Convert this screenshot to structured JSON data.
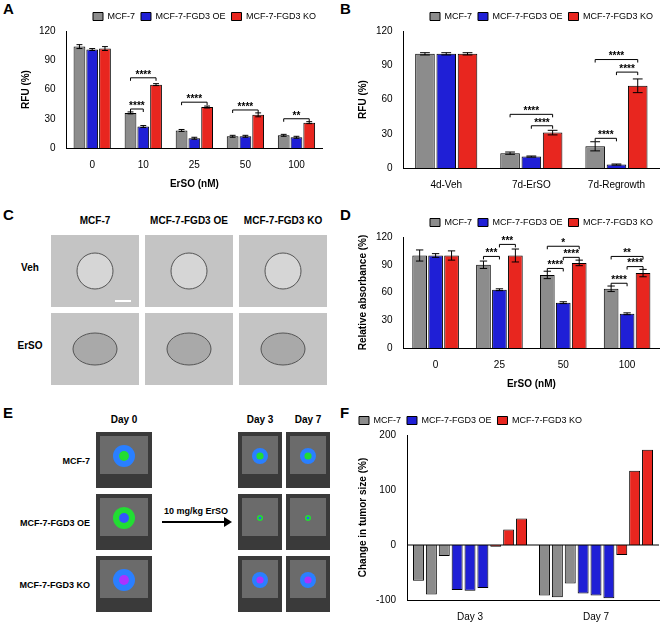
{
  "chart_data": [
    {
      "panel": "A",
      "type": "bar",
      "categories": [
        "0",
        "10",
        "25",
        "50",
        "100"
      ],
      "x_label": "ErSO (nM)",
      "y_label": "RFU (%)",
      "ylim": [
        0,
        120
      ],
      "yticks": [
        0,
        30,
        60,
        90,
        120
      ],
      "grid": false,
      "legend": "top-right",
      "series": [
        {
          "name": "MCF-7",
          "color": "#8c8c8c",
          "values": [
            104,
            36,
            18,
            12,
            13
          ],
          "errors": [
            2,
            1,
            1,
            1,
            1
          ]
        },
        {
          "name": "MCF-7-FGD3 OE",
          "color": "#1f1fd6",
          "values": [
            101,
            22,
            10,
            12,
            11
          ],
          "errors": [
            1,
            1,
            1,
            1,
            1
          ]
        },
        {
          "name": "MCF-7-FGD3 KO",
          "color": "#e8261f",
          "values": [
            102,
            65,
            42,
            34,
            26
          ],
          "errors": [
            2,
            1,
            1,
            2,
            1
          ]
        }
      ],
      "significance": [
        {
          "category": "10",
          "between": [
            "MCF-7",
            "MCF-7-FGD3 OE"
          ],
          "label": "****",
          "y": 40
        },
        {
          "category": "10",
          "between": [
            "MCF-7",
            "MCF-7-FGD3 KO"
          ],
          "label": "****",
          "y": 72
        },
        {
          "category": "25",
          "between": [
            "MCF-7",
            "MCF-7-FGD3 KO"
          ],
          "label": "****",
          "y": 47
        },
        {
          "category": "50",
          "between": [
            "MCF-7",
            "MCF-7-FGD3 KO"
          ],
          "label": "****",
          "y": 39
        },
        {
          "category": "100",
          "between": [
            "MCF-7",
            "MCF-7-FGD3 KO"
          ],
          "label": "**",
          "y": 30
        }
      ]
    },
    {
      "panel": "B",
      "type": "bar",
      "categories": [
        "4d-Veh",
        "7d-ErSO",
        "7d-Regrowth"
      ],
      "y_label": "RFU (%)",
      "ylim": [
        0,
        120
      ],
      "yticks": [
        0,
        30,
        60,
        90,
        120
      ],
      "grid": false,
      "legend": "top-right",
      "series": [
        {
          "name": "MCF-7",
          "color": "#8c8c8c",
          "values": [
            100,
            13,
            19
          ],
          "errors": [
            1,
            1,
            4
          ]
        },
        {
          "name": "MCF-7-FGD3 OE",
          "color": "#1f1fd6",
          "values": [
            100,
            10,
            3
          ],
          "errors": [
            1,
            0.5,
            0.5
          ]
        },
        {
          "name": "MCF-7-FGD3 KO",
          "color": "#e8261f",
          "values": [
            100,
            31,
            72
          ],
          "errors": [
            1,
            2,
            6
          ]
        }
      ],
      "significance": [
        {
          "category": "7d-ErSO",
          "between": [
            "MCF-7-FGD3 OE",
            "MCF-7-FGD3 KO"
          ],
          "label": "****",
          "y": 37
        },
        {
          "category": "7d-ErSO",
          "between": [
            "MCF-7",
            "MCF-7-FGD3 KO"
          ],
          "label": "****",
          "y": 47
        },
        {
          "category": "7d-Regrowth",
          "between": [
            "MCF-7",
            "MCF-7-FGD3 OE"
          ],
          "label": "****",
          "y": 26
        },
        {
          "category": "7d-Regrowth",
          "between": [
            "MCF-7-FGD3 OE",
            "MCF-7-FGD3 KO"
          ],
          "label": "****",
          "y": 84
        },
        {
          "category": "7d-Regrowth",
          "between": [
            "MCF-7",
            "MCF-7-FGD3 KO"
          ],
          "label": "****",
          "y": 95
        }
      ]
    },
    {
      "panel": "D",
      "type": "bar",
      "categories": [
        "0",
        "25",
        "50",
        "100"
      ],
      "x_label": "ErSO (nM)",
      "y_label": "Relative absorbance (%)",
      "ylim": [
        0,
        120
      ],
      "yticks": [
        0,
        30,
        60,
        90,
        120
      ],
      "grid": false,
      "legend": "top-right",
      "series": [
        {
          "name": "MCF-7",
          "color": "#8c8c8c",
          "values": [
            100,
            90,
            79,
            64
          ],
          "errors": [
            6,
            4,
            4,
            3
          ]
        },
        {
          "name": "MCF-7-FGD3 OE",
          "color": "#1f1fd6",
          "values": [
            100,
            63,
            49,
            37
          ],
          "errors": [
            2,
            1,
            1,
            1
          ]
        },
        {
          "name": "MCF-7-FGD3 KO",
          "color": "#e8261f",
          "values": [
            100,
            100,
            92,
            81
          ],
          "errors": [
            5,
            7,
            3,
            4
          ]
        }
      ],
      "significance": [
        {
          "category": "25",
          "between": [
            "MCF-7",
            "MCF-7-FGD3 OE"
          ],
          "label": "***",
          "y": 99
        },
        {
          "category": "25",
          "between": [
            "MCF-7-FGD3 OE",
            "MCF-7-FGD3 KO"
          ],
          "label": "***",
          "y": 112
        },
        {
          "category": "50",
          "between": [
            "MCF-7",
            "MCF-7-FGD3 OE"
          ],
          "label": "****",
          "y": 86
        },
        {
          "category": "50",
          "between": [
            "MCF-7-FGD3 OE",
            "MCF-7-FGD3 KO"
          ],
          "label": "****",
          "y": 98
        },
        {
          "category": "50",
          "between": [
            "MCF-7",
            "MCF-7-FGD3 KO"
          ],
          "label": "*",
          "y": 110
        },
        {
          "category": "100",
          "between": [
            "MCF-7",
            "MCF-7-FGD3 OE"
          ],
          "label": "****",
          "y": 70
        },
        {
          "category": "100",
          "between": [
            "MCF-7-FGD3 OE",
            "MCF-7-FGD3 KO"
          ],
          "label": "****",
          "y": 88
        },
        {
          "category": "100",
          "between": [
            "MCF-7",
            "MCF-7-FGD3 KO"
          ],
          "label": "**",
          "y": 99
        }
      ]
    },
    {
      "panel": "F",
      "type": "bar",
      "categories": [
        "Day 3",
        "Day 7"
      ],
      "y_label": "Change in tumor size (%)",
      "ylim": [
        -100,
        200
      ],
      "yticks": [
        -100,
        0,
        100,
        200
      ],
      "grid": false,
      "legend": "top-left",
      "series": [
        {
          "name": "MCF-7",
          "color": "#8c8c8c",
          "values": [
            [
              -65,
              -90,
              -20
            ],
            [
              -92,
              -95,
              -70
            ]
          ]
        },
        {
          "name": "MCF-7-FGD3 OE",
          "color": "#1f1fd6",
          "values": [
            [
              -82,
              -83,
              -78
            ],
            [
              -88,
              -92,
              -97
            ]
          ]
        },
        {
          "name": "MCF-7-FGD3 KO",
          "color": "#e8261f",
          "values": [
            [
              -3,
              28,
              48
            ],
            [
              -18,
              135,
              173
            ]
          ]
        }
      ]
    }
  ],
  "panel_c": {
    "panel": "C",
    "columns": [
      "MCF-7",
      "MCF-7-FGD3 OE",
      "MCF-7-FGD3 KO"
    ],
    "rows": [
      "Veh",
      "ErSO"
    ]
  },
  "panel_e": {
    "panel": "E",
    "rows": [
      "MCF-7",
      "MCF-7-FGD3 OE",
      "MCF-7-FGD3 KO"
    ],
    "before": "Day 0",
    "after": [
      "Day 3",
      "Day 7"
    ],
    "treatment": "10 mg/kg ErSO"
  }
}
